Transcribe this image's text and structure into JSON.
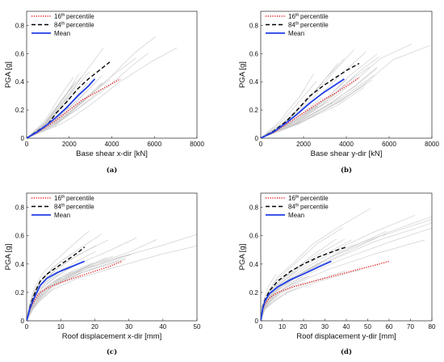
{
  "chart_data": [
    {
      "type": "line",
      "caption": "(a)",
      "xlabel": "Base shear x-dir [kN]",
      "ylabel": "PGA [g]",
      "xlim": [
        0,
        8000
      ],
      "ylim": [
        0,
        0.9
      ],
      "xticks": [
        "0",
        "2000",
        "4000",
        "6000",
        "8000"
      ],
      "yticks": [
        "0",
        "0.2",
        "0.4",
        "0.6",
        "0.8"
      ],
      "legend": {
        "p16": "16",
        "p84": "84",
        "suffix": "percentile",
        "mean": "Mean"
      },
      "series": [
        {
          "key": "p16",
          "color": "#e8191c",
          "dash": "1.2 1.6",
          "x": [
            0,
            500,
            1000,
            1400,
            2000,
            2600,
            3200,
            3800,
            4400
          ],
          "y": [
            0,
            0.04,
            0.09,
            0.13,
            0.2,
            0.27,
            0.32,
            0.37,
            0.42
          ]
        },
        {
          "key": "p84",
          "color": "#000000",
          "dash": "5 3",
          "x": [
            0,
            500,
            1000,
            1400,
            1900,
            2400,
            2900,
            3400,
            3900
          ],
          "y": [
            0,
            0.05,
            0.1,
            0.18,
            0.26,
            0.35,
            0.42,
            0.48,
            0.54
          ]
        },
        {
          "key": "mean",
          "color": "#1f3ee8",
          "dash": "",
          "x": [
            0,
            500,
            1000,
            1400,
            1900,
            2400,
            2900,
            3200
          ],
          "y": [
            0,
            0.045,
            0.1,
            0.15,
            0.22,
            0.3,
            0.37,
            0.42
          ]
        }
      ],
      "background": {
        "x": [
          0,
          1000,
          1400,
          2000,
          2800,
          3600,
          4300
        ],
        "y": [
          0,
          0.1,
          0.16,
          0.26,
          0.4,
          0.55,
          0.65
        ],
        "spread": [
          0.75,
          1.6
        ]
      }
    },
    {
      "type": "line",
      "caption": "(b)",
      "xlabel": "Base shear y-dir [kN]",
      "ylabel": "PGA [g]",
      "xlim": [
        0,
        8000
      ],
      "ylim": [
        0,
        0.9
      ],
      "xticks": [
        "0",
        "2000",
        "4000",
        "6000",
        "8000"
      ],
      "yticks": [
        "0",
        "0.2",
        "0.4",
        "0.6",
        "0.8"
      ],
      "legend": {
        "p16": "16",
        "p84": "84",
        "suffix": "percentile",
        "mean": "Mean"
      },
      "series": [
        {
          "key": "p16",
          "color": "#e8191c",
          "dash": "1.2 1.6",
          "x": [
            0,
            600,
            1200,
            1700,
            2300,
            2900,
            3500,
            4000,
            4600
          ],
          "y": [
            0,
            0.04,
            0.1,
            0.15,
            0.21,
            0.27,
            0.32,
            0.37,
            0.43
          ]
        },
        {
          "key": "p84",
          "color": "#000000",
          "dash": "5 3",
          "x": [
            0,
            600,
            1200,
            1700,
            2300,
            2900,
            3500,
            4000,
            4600
          ],
          "y": [
            0,
            0.05,
            0.12,
            0.2,
            0.3,
            0.37,
            0.43,
            0.48,
            0.53
          ]
        },
        {
          "key": "mean",
          "color": "#1f3ee8",
          "dash": "",
          "x": [
            0,
            600,
            1200,
            1700,
            2300,
            2900,
            3400,
            3900
          ],
          "y": [
            0,
            0.045,
            0.11,
            0.17,
            0.25,
            0.32,
            0.37,
            0.42
          ]
        }
      ],
      "background": {
        "x": [
          0,
          1200,
          1700,
          2400,
          3300,
          4200,
          5000
        ],
        "y": [
          0,
          0.11,
          0.17,
          0.26,
          0.4,
          0.55,
          0.65
        ],
        "spread": [
          0.75,
          1.6
        ]
      }
    },
    {
      "type": "line",
      "caption": "(c)",
      "xlabel": "Roof displacement x-dir [mm]",
      "ylabel": "PGA [g]",
      "xlim": [
        0,
        50
      ],
      "ylim": [
        0,
        0.9
      ],
      "xticks": [
        "0",
        "10",
        "20",
        "30",
        "40",
        "50"
      ],
      "yticks": [
        "0",
        "0.2",
        "0.4",
        "0.6",
        "0.8"
      ],
      "legend": {
        "p16": "16",
        "p84": "84",
        "suffix": "percentile",
        "mean": "Mean"
      },
      "series": [
        {
          "key": "p16",
          "color": "#e8191c",
          "dash": "1.2 1.6",
          "x": [
            0,
            1,
            2,
            3,
            4,
            6,
            10,
            15,
            20,
            24,
            28
          ],
          "y": [
            0,
            0.08,
            0.13,
            0.17,
            0.2,
            0.23,
            0.27,
            0.31,
            0.35,
            0.38,
            0.42
          ]
        },
        {
          "key": "p84",
          "color": "#000000",
          "dash": "5 3",
          "x": [
            0,
            1,
            2,
            3,
            4,
            6,
            9,
            12,
            15,
            17
          ],
          "y": [
            0,
            0.1,
            0.17,
            0.23,
            0.28,
            0.33,
            0.38,
            0.43,
            0.48,
            0.52
          ]
        },
        {
          "key": "mean",
          "color": "#1f3ee8",
          "dash": "",
          "x": [
            0,
            1,
            2,
            3,
            4,
            6,
            9,
            12,
            15,
            17
          ],
          "y": [
            0,
            0.09,
            0.15,
            0.2,
            0.25,
            0.3,
            0.34,
            0.37,
            0.4,
            0.42
          ]
        }
      ],
      "background": {
        "x": [
          0,
          1,
          2,
          4,
          8,
          14,
          22,
          30,
          40
        ],
        "y": [
          0,
          0.09,
          0.15,
          0.24,
          0.33,
          0.42,
          0.52,
          0.62,
          0.74
        ],
        "spread": [
          0.55,
          2.2
        ]
      }
    },
    {
      "type": "line",
      "caption": "(d)",
      "xlabel": "Roof displacement y-dir [mm]",
      "ylabel": "PGA [g]",
      "xlim": [
        0,
        80
      ],
      "ylim": [
        0,
        0.9
      ],
      "xticks": [
        "0",
        "10",
        "20",
        "30",
        "40",
        "50",
        "60",
        "70",
        "80"
      ],
      "yticks": [
        "0",
        "0.2",
        "0.4",
        "0.6",
        "0.8"
      ],
      "legend": {
        "p16": "16",
        "p84": "84",
        "suffix": "percentile",
        "mean": "Mean"
      },
      "series": [
        {
          "key": "p16",
          "color": "#e8191c",
          "dash": "1.2 1.6",
          "x": [
            0,
            1,
            2,
            4,
            8,
            15,
            25,
            35,
            45,
            53,
            60
          ],
          "y": [
            0,
            0.08,
            0.12,
            0.16,
            0.2,
            0.24,
            0.28,
            0.32,
            0.36,
            0.39,
            0.42
          ]
        },
        {
          "key": "p84",
          "color": "#000000",
          "dash": "5 3",
          "x": [
            0,
            1,
            2,
            4,
            8,
            14,
            20,
            27,
            34,
            40
          ],
          "y": [
            0,
            0.1,
            0.15,
            0.21,
            0.28,
            0.35,
            0.4,
            0.45,
            0.49,
            0.52
          ]
        },
        {
          "key": "mean",
          "color": "#1f3ee8",
          "dash": "",
          "x": [
            0,
            1,
            2,
            4,
            8,
            14,
            20,
            27,
            33
          ],
          "y": [
            0,
            0.09,
            0.14,
            0.19,
            0.24,
            0.29,
            0.33,
            0.38,
            0.42
          ]
        }
      ],
      "background": {
        "x": [
          0,
          1,
          3,
          6,
          12,
          22,
          35,
          50,
          70
        ],
        "y": [
          0,
          0.09,
          0.15,
          0.22,
          0.3,
          0.4,
          0.52,
          0.63,
          0.76
        ],
        "spread": [
          0.55,
          2.2
        ]
      }
    }
  ]
}
